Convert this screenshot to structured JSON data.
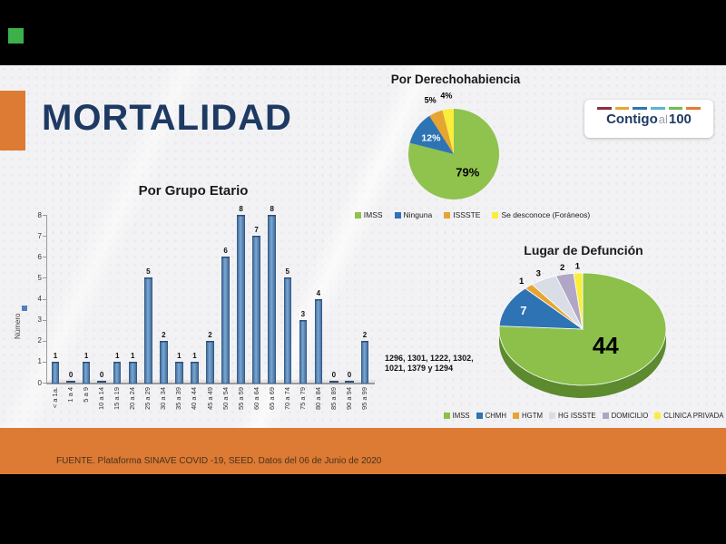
{
  "slide": {
    "title": "MORTALIDAD",
    "footer": "FUENTE. Plataforma SINAVE COVID -19, SEED. Datos del 06 de Junio de 2020",
    "side_note": {
      "line1": "1296, 1301, 1222, 1302,",
      "line2": "1021, 1379 y 1294"
    },
    "logo": {
      "part1": "Contigo",
      "part2": "al",
      "part3": "100",
      "dash_colors": [
        "#8e2f3e",
        "#e6a532",
        "#2e74b5",
        "#55b7cf",
        "#6dbf4b",
        "#e87a2e"
      ]
    },
    "accent_color": "#dd7a33",
    "title_color": "#1e3a63",
    "indicator_color": "#3cb14a"
  },
  "chart_data": [
    {
      "type": "bar",
      "title": "Por Grupo Etario",
      "ylabel": "Número",
      "series_name": "Número",
      "series_color": "#4f81bd",
      "categories": [
        "< a 1a.",
        "1 a 4",
        "5 a 9",
        "10 a 14",
        "15 a 19",
        "20 a 24",
        "25 a 29",
        "30 a 34",
        "35 a 39",
        "40 a 44",
        "45 a 49",
        "50 a 54",
        "55 a 59",
        "60 a 64",
        "65 a 69",
        "70 a 74",
        "75 a 79",
        "80 a 84",
        "85 a 89",
        "90 a 94",
        "95 a 99"
      ],
      "values": [
        1,
        0,
        1,
        0,
        1,
        1,
        5,
        2,
        1,
        1,
        2,
        6,
        8,
        7,
        8,
        5,
        3,
        4,
        0,
        0,
        2
      ],
      "ylim": [
        0,
        8
      ],
      "ytick_step": 1,
      "grid": false,
      "legend_position": "left"
    },
    {
      "type": "pie",
      "title": "Por Derechohabiencia",
      "labels": [
        "IMSS",
        "Ninguna",
        "ISSSTE",
        "Se desconoce (Foráneos)"
      ],
      "values": [
        79,
        12,
        5,
        4
      ],
      "unit": "%",
      "colors": [
        "#90c24e",
        "#2e74b5",
        "#e6a532",
        "#f9ee3a"
      ],
      "label_colors": [
        "#000000",
        "#ffffff",
        "#000000",
        "#000000"
      ],
      "legend_position": "bottom"
    },
    {
      "type": "pie3d",
      "title": "Lugar de Defunción",
      "labels": [
        "IMSS",
        "CHMH",
        "HGTM",
        "HG ISSSTE",
        "DOMICILIO",
        "CLINICA PRIVADA"
      ],
      "values": [
        44,
        7,
        1,
        3,
        2,
        1
      ],
      "unit": "",
      "colors": [
        "#8cc04b",
        "#2e74b5",
        "#e6a532",
        "#d9dde6",
        "#b1a6c6",
        "#f9ee3a"
      ],
      "label_colors": [
        "#000000",
        "#ffffff",
        "#000000",
        "#000000",
        "#000000",
        "#000000"
      ],
      "side_color": "#5d8a2f",
      "legend_position": "bottom"
    }
  ]
}
